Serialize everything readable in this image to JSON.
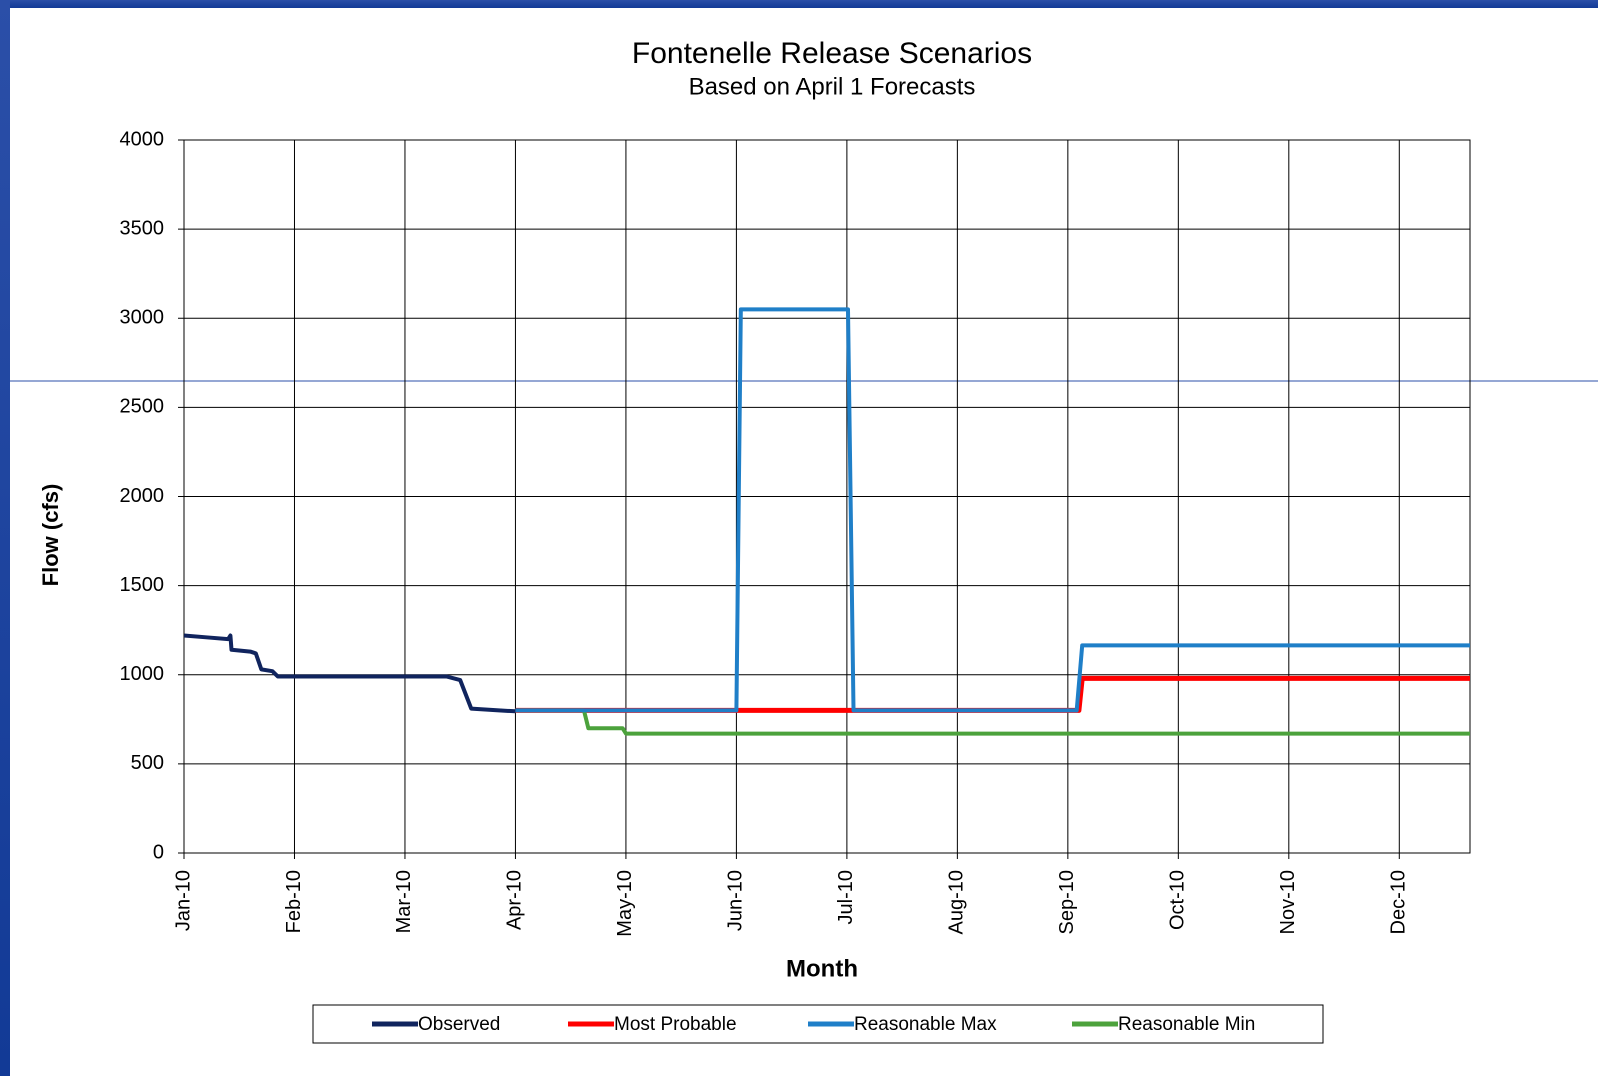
{
  "chart_data": {
    "type": "line",
    "title": "Fontenelle Release Scenarios",
    "subtitle": "Based on April 1 Forecasts",
    "xlabel": "Month",
    "ylabel": "Flow (cfs)",
    "xlim": [
      0,
      11.64
    ],
    "xticks": [
      {
        "value": 0,
        "label": "Jan-10"
      },
      {
        "value": 1,
        "label": "Feb-10"
      },
      {
        "value": 2,
        "label": "Mar-10"
      },
      {
        "value": 3,
        "label": "Apr-10"
      },
      {
        "value": 4,
        "label": "May-10"
      },
      {
        "value": 5,
        "label": "Jun-10"
      },
      {
        "value": 6,
        "label": "Jul-10"
      },
      {
        "value": 7,
        "label": "Aug-10"
      },
      {
        "value": 8,
        "label": "Sep-10"
      },
      {
        "value": 9,
        "label": "Oct-10"
      },
      {
        "value": 10,
        "label": "Nov-10"
      },
      {
        "value": 11,
        "label": "Dec-10"
      }
    ],
    "ylim": [
      0,
      4000
    ],
    "yticks": [
      0,
      500,
      1000,
      1500,
      2000,
      2500,
      3000,
      3500,
      4000
    ],
    "grid": true,
    "legend": "bottom",
    "series": [
      {
        "name": "Observed",
        "color": "#10245e",
        "x": [
          0,
          0.2,
          0.4,
          0.42,
          0.43,
          0.6,
          0.65,
          0.7,
          0.8,
          0.85,
          2.38,
          2.5,
          2.6,
          2.85,
          3.0
        ],
        "values": [
          1220,
          1210,
          1200,
          1220,
          1140,
          1130,
          1120,
          1030,
          1020,
          990,
          990,
          970,
          810,
          800,
          795
        ]
      },
      {
        "name": "Most Probable",
        "color": "#ff0000",
        "x": [
          3.0,
          8.1,
          8.13,
          11.64
        ],
        "values": [
          800,
          800,
          980,
          980
        ]
      },
      {
        "name": "Reasonable Max",
        "color": "#1f7fc8",
        "x": [
          3.0,
          5.0,
          5.04,
          6.01,
          6.06,
          8.08,
          8.13,
          11.64
        ],
        "values": [
          800,
          800,
          3050,
          3050,
          800,
          800,
          1165,
          1165
        ]
      },
      {
        "name": "Reasonable Min",
        "color": "#4ca23c",
        "x": [
          3.0,
          3.62,
          3.66,
          3.97,
          4.0,
          11.64
        ],
        "values": [
          800,
          800,
          700,
          700,
          670,
          670
        ]
      }
    ]
  }
}
